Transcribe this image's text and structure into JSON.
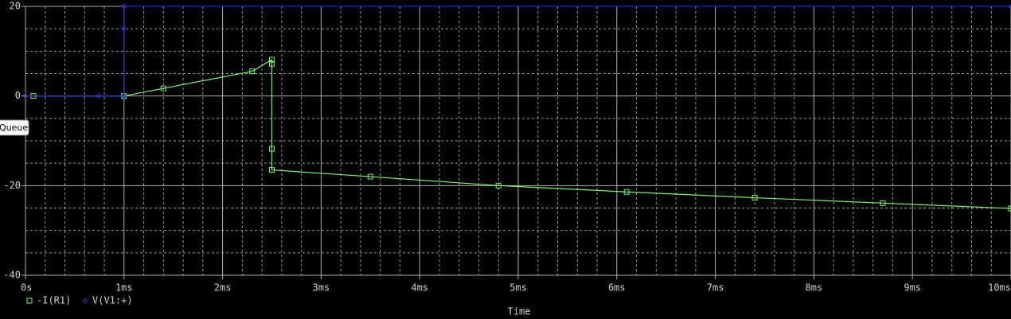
{
  "chart_data": {
    "type": "line",
    "xlabel": "Time",
    "tooltip": "Queue",
    "xlim": [
      0,
      10
    ],
    "ylim": [
      -40,
      20
    ],
    "xticks": [
      {
        "value": 0,
        "label": "0s"
      },
      {
        "value": 1,
        "label": "1ms"
      },
      {
        "value": 2,
        "label": "2ms"
      },
      {
        "value": 3,
        "label": "3ms"
      },
      {
        "value": 4,
        "label": "4ms"
      },
      {
        "value": 5,
        "label": "5ms"
      },
      {
        "value": 6,
        "label": "6ms"
      },
      {
        "value": 7,
        "label": "7ms"
      },
      {
        "value": 8,
        "label": "8ms"
      },
      {
        "value": 9,
        "label": "9ms"
      },
      {
        "value": 10,
        "label": "10ms"
      }
    ],
    "yticks": [
      20,
      0,
      -20,
      -40
    ],
    "grid": true,
    "series": [
      {
        "name": "-I(R1)",
        "color": "#7cf46c",
        "marker": "square",
        "x": [
          0.08,
          1.0,
          1.4,
          2.3,
          2.5,
          2.5,
          2.5,
          2.5,
          3.5,
          4.8,
          6.1,
          7.4,
          8.7,
          10
        ],
        "values": [
          0,
          0,
          1.7,
          5.5,
          8.1,
          7.2,
          -11.8,
          -16.5,
          -18,
          -20,
          -21.4,
          -22.7,
          -23.9,
          -25.1
        ]
      },
      {
        "name": "V(V1:+)",
        "color": "#2a2ad0",
        "marker": "diamond",
        "x": [
          0,
          0.74,
          1,
          1,
          1,
          10
        ],
        "values": [
          0,
          0,
          0,
          15,
          20,
          20
        ]
      }
    ]
  }
}
